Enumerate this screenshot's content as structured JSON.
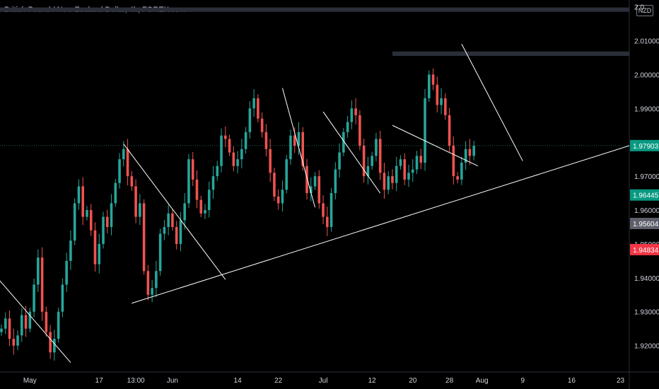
{
  "header": {
    "title": "British Pound / New Zealand Dollar, 4h, FOREX.com"
  },
  "price_axis": {
    "currency": "NZD"
  },
  "chart_data": {
    "type": "candlestick",
    "title": "British Pound / New Zealand Dollar, 4h, FOREX.com",
    "ylim": [
      1.9122,
      2.022
    ],
    "y_ticks": [
      {
        "value": 1.92,
        "label": "1.92000"
      },
      {
        "value": 1.93,
        "label": "1.93000"
      },
      {
        "value": 1.94,
        "label": "1.94000"
      },
      {
        "value": 1.95,
        "label": "1.95000"
      },
      {
        "value": 1.96,
        "label": "1.96000"
      },
      {
        "value": 1.97,
        "label": "1.97000"
      },
      {
        "value": 1.98,
        "label": "1.98000"
      },
      {
        "value": 1.99,
        "label": "1.99000"
      },
      {
        "value": 2.0,
        "label": "2.00000"
      },
      {
        "value": 2.01,
        "label": "2.01000"
      },
      {
        "value": 2.02,
        "label": "2.0"
      }
    ],
    "x_ticks": [
      {
        "label": "May",
        "i": 7
      },
      {
        "label": "17",
        "i": 24
      },
      {
        "label": "13:00",
        "i": 33
      },
      {
        "label": "Jun",
        "i": 42
      },
      {
        "label": "14",
        "i": 58
      },
      {
        "label": "22",
        "i": 68
      },
      {
        "label": "Jul",
        "i": 79
      },
      {
        "label": "12",
        "i": 91
      },
      {
        "label": "20",
        "i": 101
      },
      {
        "label": "28",
        "i": 110
      },
      {
        "label": "Aug",
        "i": 118
      },
      {
        "label": "9",
        "i": 128
      },
      {
        "label": "16",
        "i": 140
      },
      {
        "label": "23",
        "i": 152
      }
    ],
    "price_tags": [
      {
        "value": 1.97903,
        "label": "1.97903",
        "color": "#089981"
      },
      {
        "value": 1.96445,
        "label": "1.96445",
        "color": "#089981"
      },
      {
        "value": 1.95604,
        "label": "1.95604",
        "color": "#5d606b"
      },
      {
        "value": 1.94834,
        "label": "1.94834",
        "color": "#f23645"
      }
    ],
    "colors": {
      "up": "#26a69a",
      "down": "#ef5350",
      "line": "#ffffff",
      "zone": "#2a2e39"
    },
    "zones": [
      {
        "from_i": -1,
        "to_i": 155,
        "low": 2.0185,
        "high": 2.0198
      },
      {
        "from_i": 96,
        "to_i": 155,
        "low": 2.0055,
        "high": 2.0068
      }
    ],
    "trendlines": [
      {
        "i1": -1,
        "p1": 1.94,
        "i2": 17,
        "p2": 1.915
      },
      {
        "i1": 30,
        "p1": 1.9795,
        "i2": 55,
        "p2": 1.9395
      },
      {
        "i1": 32,
        "p1": 1.9325,
        "i2": 156,
        "p2": 1.979
      },
      {
        "i1": 69,
        "p1": 1.996,
        "i2": 77,
        "p2": 1.9608
      },
      {
        "i1": 79,
        "p1": 1.989,
        "i2": 93,
        "p2": 1.965
      },
      {
        "i1": 96,
        "p1": 1.985,
        "i2": 117,
        "p2": 1.973
      },
      {
        "i1": 113,
        "p1": 2.009,
        "i2": 128,
        "p2": 1.9745
      }
    ],
    "closes": [
      1.925,
      1.928,
      1.922,
      1.92,
      1.923,
      1.929,
      1.925,
      1.93,
      1.938,
      1.946,
      1.93,
      1.924,
      1.918,
      1.922,
      1.93,
      1.938,
      1.945,
      1.951,
      1.962,
      1.967,
      1.958,
      1.96,
      1.954,
      1.944,
      1.95,
      1.958,
      1.955,
      1.962,
      1.968,
      1.975,
      1.978,
      1.97,
      1.967,
      1.958,
      1.962,
      1.942,
      1.935,
      1.937,
      1.942,
      1.953,
      1.955,
      1.959,
      1.955,
      1.95,
      1.957,
      1.962,
      1.975,
      1.969,
      1.963,
      1.959,
      1.96,
      1.966,
      1.97,
      1.973,
      1.982,
      1.981,
      1.977,
      1.973,
      1.975,
      1.978,
      1.983,
      1.99,
      1.993,
      1.987,
      1.983,
      1.978,
      1.971,
      1.964,
      1.962,
      1.966,
      1.975,
      1.982,
      1.979,
      1.983,
      1.973,
      1.965,
      1.967,
      1.97,
      1.962,
      1.958,
      1.955,
      1.965,
      1.972,
      1.977,
      1.983,
      1.986,
      1.99,
      1.988,
      1.979,
      1.97,
      1.973,
      1.976,
      1.981,
      1.971,
      1.966,
      1.97,
      1.968,
      1.973,
      1.975,
      1.969,
      1.971,
      1.972,
      1.976,
      1.974,
      1.993,
      2.0,
      1.997,
      1.991,
      1.993,
      1.988,
      1.979,
      1.97,
      1.969,
      1.974,
      1.978,
      1.976,
      1.979
    ]
  }
}
